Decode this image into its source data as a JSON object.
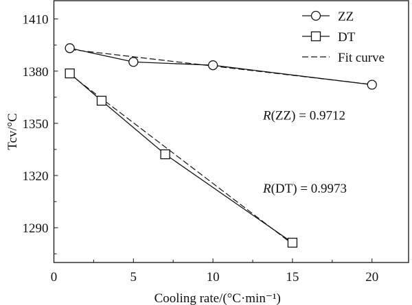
{
  "chart_data": {
    "type": "line",
    "title": "",
    "xlabel": "Cooling rate/(°C·min⁻¹)",
    "ylabel": "Tcv/°C",
    "xlim": [
      0,
      22.3
    ],
    "ylim": [
      1270,
      1420.5
    ],
    "xticks": [
      0,
      5,
      10,
      15,
      20
    ],
    "yticks": [
      1290,
      1320,
      1350,
      1380,
      1410
    ],
    "xtick_labels": [
      "0",
      "5",
      "10",
      "15",
      "20"
    ],
    "ytick_labels": [
      "1290",
      "1320",
      "1350",
      "1380",
      "1410"
    ],
    "grid": false,
    "legend_position": "top-right",
    "series": [
      {
        "name": "ZZ",
        "marker": "circle",
        "x": [
          1,
          5,
          10,
          20
        ],
        "y": [
          1393.2,
          1385.3,
          1383.4,
          1372.2
        ]
      },
      {
        "name": "DT",
        "marker": "square",
        "x": [
          1,
          3,
          7,
          15
        ],
        "y": [
          1378.7,
          1363,
          1332.2,
          1281.4
        ]
      }
    ],
    "fits": [
      {
        "name": "Fit curve",
        "for": "ZZ",
        "x": [
          1,
          20
        ],
        "y": [
          1392.5,
          1372.3
        ]
      },
      {
        "name": "Fit curve",
        "for": "DT",
        "x": [
          1,
          15
        ],
        "y": [
          1378.2,
          1280.6
        ]
      }
    ],
    "legend": [
      "ZZ",
      "DT",
      "Fit curve"
    ],
    "annotations": [
      {
        "italic": "R",
        "text": "(ZZ) = 0.9712",
        "x": 15.5,
        "y": 1355
      },
      {
        "italic": "R",
        "text": "(DT) = 0.9973",
        "x": 15.5,
        "y": 1313
      }
    ]
  }
}
